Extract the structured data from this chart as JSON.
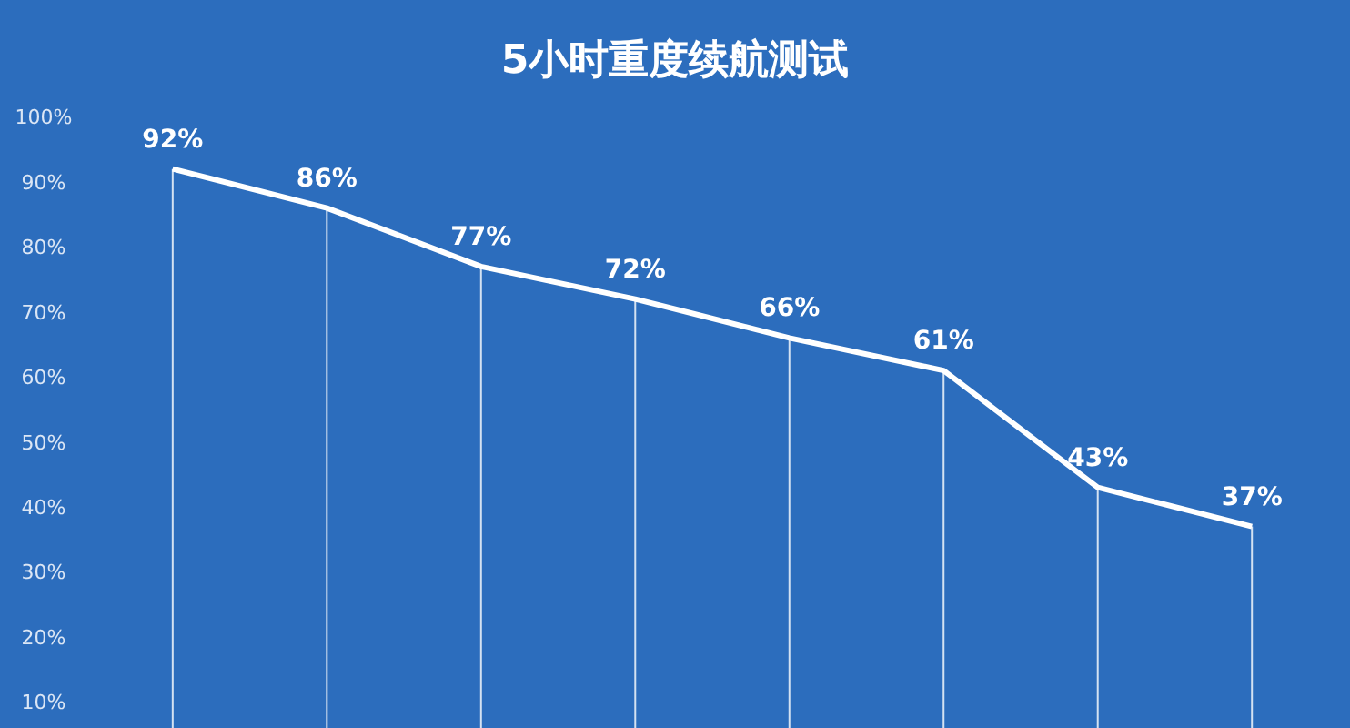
{
  "chart_data": {
    "type": "line",
    "title": "5小时重度续航测试",
    "categories": [
      null,
      null,
      null,
      null,
      null,
      null,
      null,
      null
    ],
    "series": [
      {
        "color": "#ffffff",
        "values": [
          92,
          86,
          77,
          72,
          66,
          61,
          43,
          37
        ],
        "value_labels": [
          "92%",
          "86%",
          "77%",
          "72%",
          "66%",
          "61%",
          "43%",
          "37%"
        ]
      }
    ],
    "ylim": [
      6,
      118
    ],
    "yticks": [
      {
        "value": 10,
        "label": "10%"
      },
      {
        "value": 20,
        "label": "20%"
      },
      {
        "value": 30,
        "label": "30%"
      },
      {
        "value": 40,
        "label": "40%"
      },
      {
        "value": 50,
        "label": "50%"
      },
      {
        "value": 60,
        "label": "60%"
      },
      {
        "value": 70,
        "label": "70%"
      },
      {
        "value": 80,
        "label": "80%"
      },
      {
        "value": 90,
        "label": "90%"
      },
      {
        "value": 100,
        "label": "100%"
      }
    ],
    "grid": false,
    "legend": false
  }
}
